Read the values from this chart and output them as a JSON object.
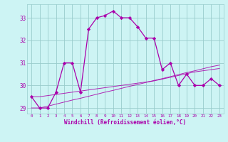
{
  "xlabel": "Windchill (Refroidissement éolien,°C)",
  "bg_color": "#cdf4f4",
  "grid_color": "#99cccc",
  "line_color": "#aa00aa",
  "x_hours": [
    0,
    1,
    2,
    3,
    4,
    5,
    6,
    7,
    8,
    9,
    10,
    11,
    12,
    13,
    14,
    15,
    16,
    17,
    18,
    19,
    20,
    21,
    22,
    23
  ],
  "windchill": [
    29.5,
    29.0,
    29.0,
    29.7,
    31.0,
    31.0,
    29.7,
    32.5,
    33.0,
    33.1,
    33.3,
    33.0,
    33.0,
    32.6,
    32.1,
    32.1,
    30.7,
    31.0,
    30.0,
    30.5,
    30.0,
    30.0,
    30.3,
    30.0
  ],
  "temp_line1": [
    29.0,
    29.0,
    29.08,
    29.17,
    29.26,
    29.35,
    29.43,
    29.52,
    29.61,
    29.7,
    29.78,
    29.87,
    29.96,
    30.04,
    30.13,
    30.22,
    30.3,
    30.39,
    30.48,
    30.57,
    30.65,
    30.74,
    30.83,
    30.9
  ],
  "temp_line2": [
    29.5,
    29.5,
    29.55,
    29.6,
    29.65,
    29.7,
    29.75,
    29.8,
    29.85,
    29.9,
    29.95,
    30.0,
    30.05,
    30.1,
    30.15,
    30.2,
    30.28,
    30.36,
    30.44,
    30.52,
    30.6,
    30.65,
    30.7,
    30.75
  ],
  "ylim": [
    28.75,
    33.6
  ],
  "yticks": [
    29,
    30,
    31,
    32,
    33
  ]
}
